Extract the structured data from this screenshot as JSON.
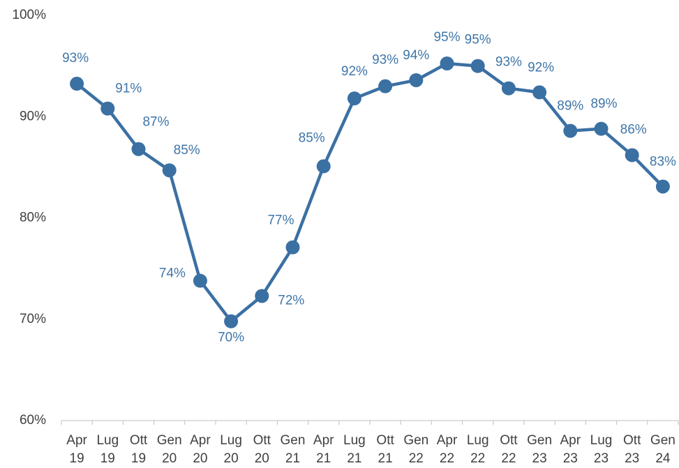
{
  "chart_data": {
    "type": "line",
    "categories": [
      "Apr 19",
      "Lug 19",
      "Ott 19",
      "Gen 20",
      "Apr 20",
      "Lug 20",
      "Ott 20",
      "Gen 21",
      "Apr 21",
      "Lug 21",
      "Ott 21",
      "Gen 22",
      "Apr 22",
      "Lug 22",
      "Ott 22",
      "Gen 23",
      "Apr 23",
      "Lug 23",
      "Ott 23",
      "Gen 24"
    ],
    "series": [
      {
        "color": "#3b70a3",
        "values": [
          93.25,
          90.8,
          86.8,
          84.7,
          73.8,
          69.8,
          72.3,
          77.1,
          85.1,
          91.8,
          93.0,
          93.6,
          95.25,
          95.0,
          92.8,
          92.4,
          88.6,
          88.8,
          86.2,
          83.1
        ],
        "value_labels": [
          "93%",
          "91%",
          "87%",
          "85%",
          "74%",
          "70%",
          "72%",
          "77%",
          "85%",
          "92%",
          "93%",
          "94%",
          "95%",
          "95%",
          "93%",
          "92%",
          "89%",
          "89%",
          "86%",
          "83%"
        ]
      }
    ],
    "ylim": [
      60,
      100
    ],
    "yticks": [
      {
        "value": 60,
        "label": "60%"
      },
      {
        "value": 70,
        "label": "70%"
      },
      {
        "value": 80,
        "label": "80%"
      },
      {
        "value": 90,
        "label": "90%"
      },
      {
        "value": 100,
        "label": "100%"
      }
    ],
    "grid": false
  }
}
